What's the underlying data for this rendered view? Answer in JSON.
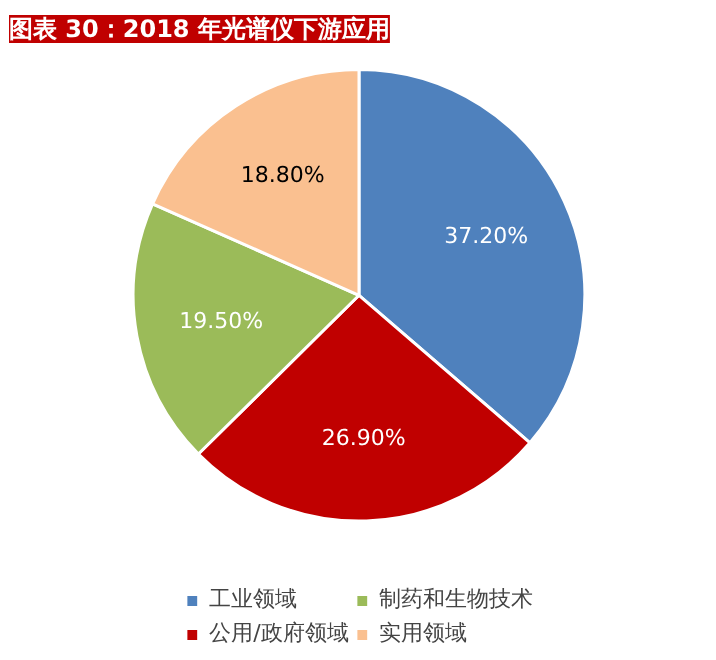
{
  "chart_data": {
    "type": "pie",
    "title": "图表 30：2018 年光谱仪下游应用",
    "categories": [
      "工业领域",
      "公用/政府领域",
      "制药和生物技术",
      "实用领域"
    ],
    "values": [
      37.2,
      26.9,
      19.5,
      18.8
    ],
    "value_labels": [
      "37.20%",
      "26.90%",
      "19.50%",
      "18.80%"
    ],
    "colors": [
      "#4f81bd",
      "#c00000",
      "#9bbb59",
      "#fac090"
    ],
    "legend": "bottom"
  }
}
